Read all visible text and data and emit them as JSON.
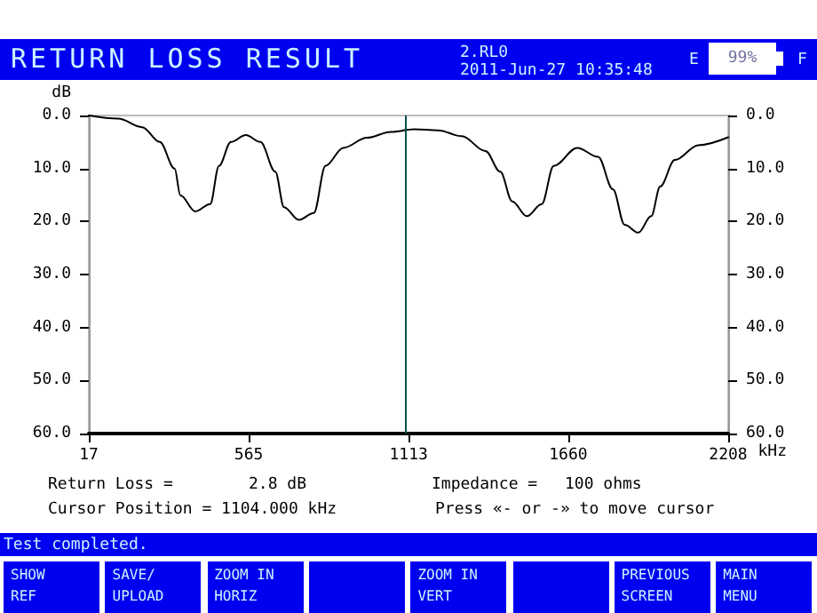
{
  "chart_data": {
    "type": "line",
    "title": "RETURN LOSS RESULT",
    "xlabel": "kHz",
    "ylabel": "dB",
    "annotations": [
      "2.RL0",
      "2011-Jun-27 10:35:48",
      "E",
      "99%",
      "F",
      "Return Loss =",
      "2.8 dB",
      "Impedance =",
      "100 ohms",
      "Cursor Position = 1104.000 kHz",
      "Press «- or -» to move cursor",
      "Test completed.",
      "SHOW\nREF",
      "SAVE/\nUPLOAD",
      "ZOOM IN\nHORIZ",
      "ZOOM IN\nVERT",
      "PREVIOUS\nSCREEN",
      "MAIN\nMENU"
    ],
    "series": [
      {
        "color": "#000000",
        "x": [
          17,
          118,
          200,
          260,
          311,
          331,
          382,
          433,
          463,
          504,
          555,
          605,
          656,
          686,
          737,
          788,
          828,
          889,
          970,
          1052,
          1133,
          1214,
          1295,
          1376,
          1427,
          1468,
          1518,
          1569,
          1610,
          1691,
          1762,
          1813,
          1853,
          1900,
          1944,
          1975,
          2025,
          2106,
          2208
        ],
        "values": [
          0.0,
          0.6,
          2.2,
          5.0,
          10.0,
          15.1,
          18.1,
          16.7,
          9.5,
          5.0,
          3.7,
          5.0,
          10.6,
          17.3,
          19.7,
          18.4,
          9.5,
          6.1,
          4.2,
          3.1,
          2.6,
          2.8,
          3.9,
          6.7,
          10.6,
          16.2,
          19.0,
          16.7,
          9.5,
          6.1,
          7.8,
          13.9,
          20.6,
          22.1,
          19.0,
          13.4,
          8.4,
          5.6,
          4.1
        ]
      }
    ],
    "xlim": [
      17,
      2208
    ],
    "xticks": [
      17,
      565,
      1113,
      1660,
      2208
    ],
    "ylim": [
      60,
      0
    ],
    "yticks": [
      {
        "value": 0,
        "label": "0.0"
      },
      {
        "value": 10,
        "label": "10.0"
      },
      {
        "value": 20,
        "label": "20.0"
      },
      {
        "value": 30,
        "label": "30.0"
      },
      {
        "value": 40,
        "label": "40.0"
      },
      {
        "value": 50,
        "label": "50.0"
      },
      {
        "value": 60,
        "label": "60.0"
      }
    ],
    "y2lim": [
      60,
      0
    ],
    "y2ticks": [
      {
        "value": 0,
        "label": "0.0"
      },
      {
        "value": 10,
        "label": "10.0"
      },
      {
        "value": 20,
        "label": "20.0"
      },
      {
        "value": 30,
        "label": "30.0"
      },
      {
        "value": 40,
        "label": "40.0"
      },
      {
        "value": 50,
        "label": "50.0"
      },
      {
        "value": 60,
        "label": "60.0"
      }
    ],
    "ref_lines": [
      {
        "axis": "x",
        "value": 1104,
        "color": "#005050"
      }
    ],
    "grid": false,
    "marker": "none",
    "line_style": "solid"
  }
}
